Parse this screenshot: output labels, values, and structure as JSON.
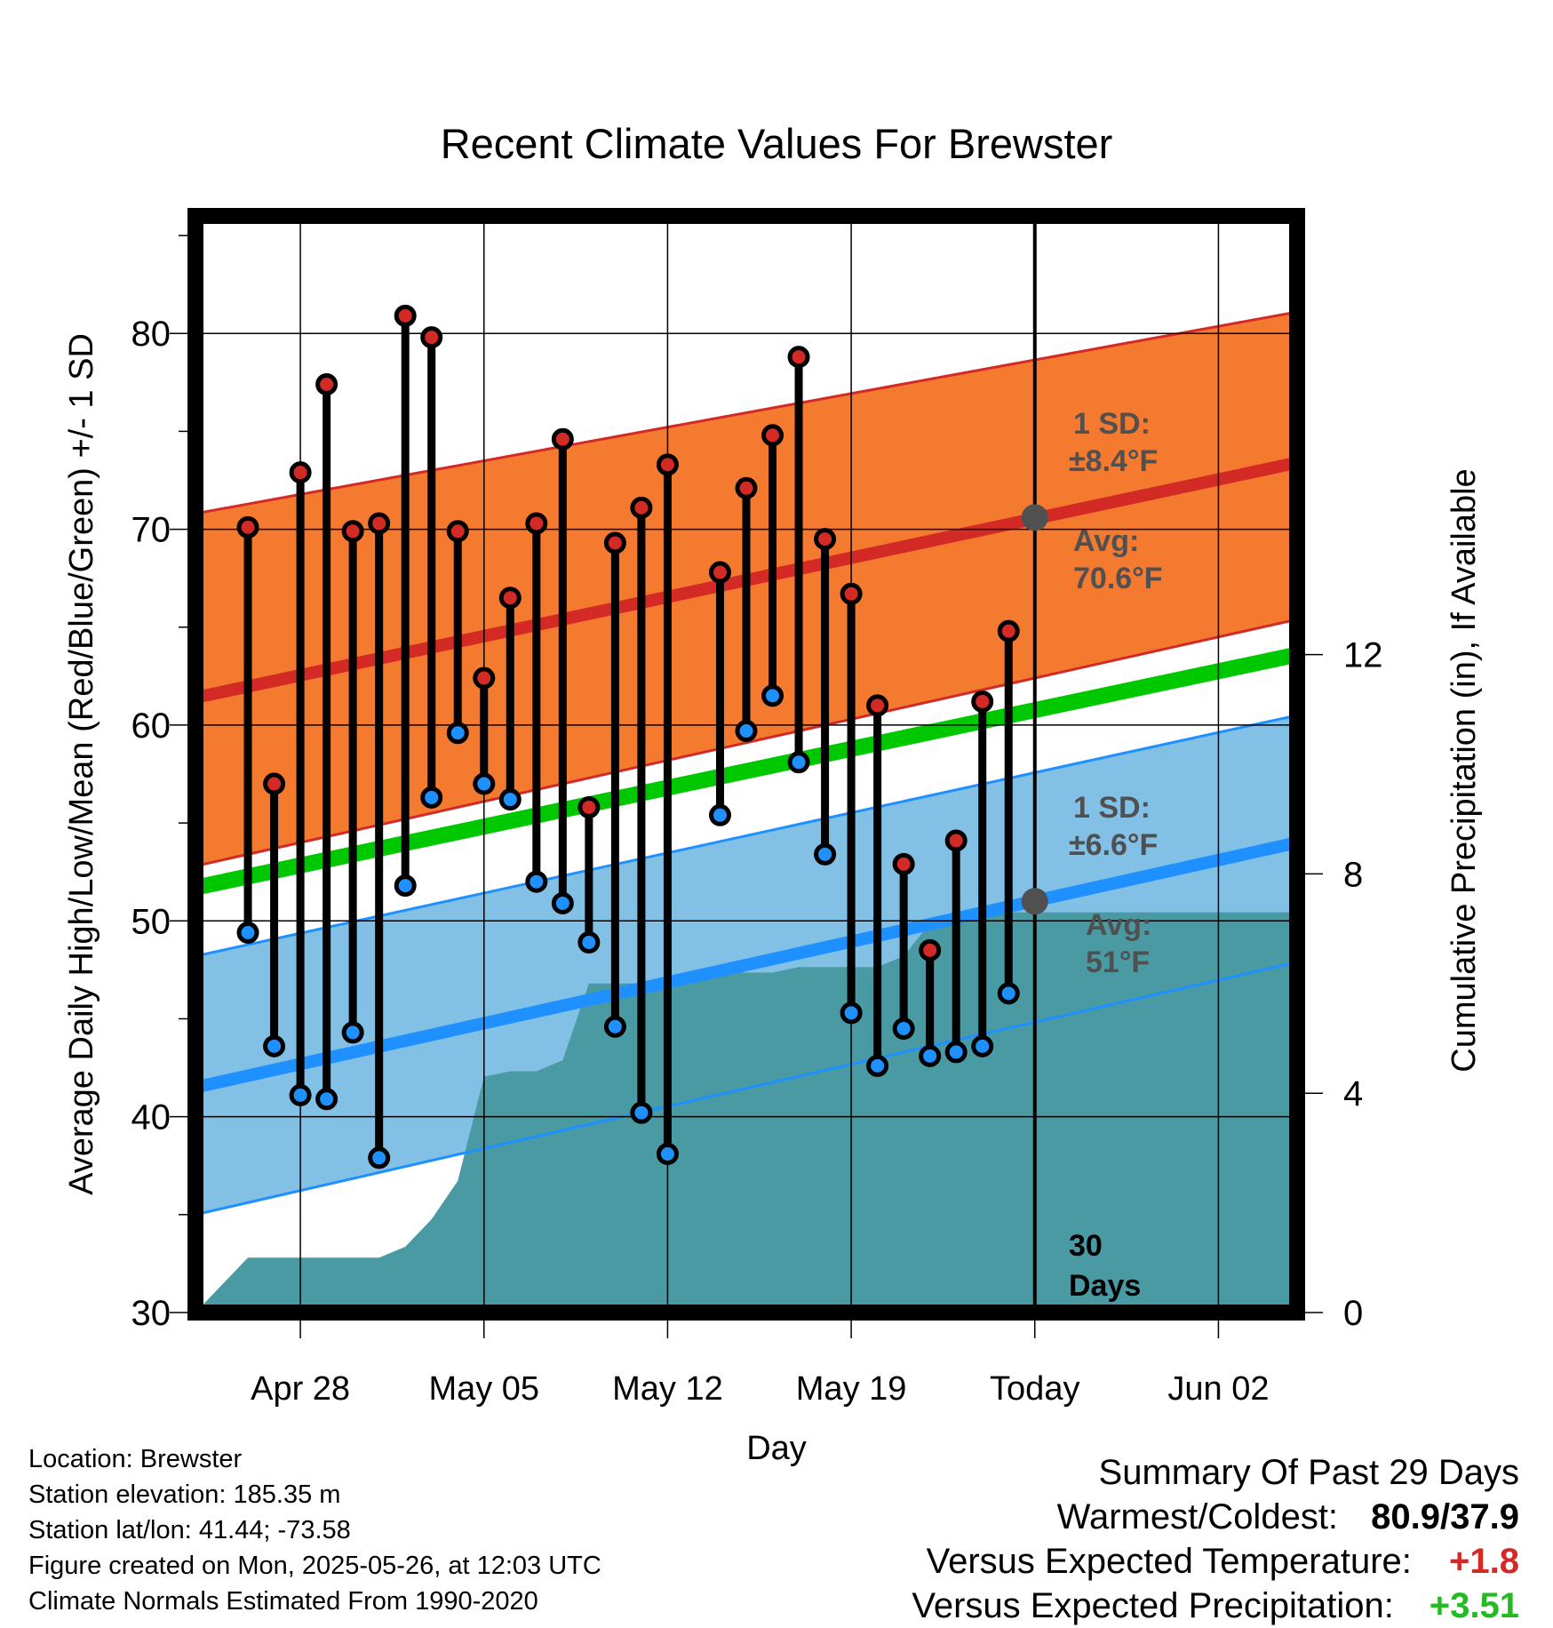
{
  "chart_data": {
    "type": "line",
    "title": "Recent Climate Values For Brewster",
    "xlabel": "Day",
    "ylabel": "Average Daily High/Low/Mean (Red/Blue/Green) +/- 1 SD",
    "y2label": "Cumulative Precipitation (in), If Available",
    "ylim": [
      30,
      86
    ],
    "y2lim": [
      0,
      20
    ],
    "y_ticks": [
      30,
      40,
      50,
      60,
      70,
      80
    ],
    "y2_ticks": [
      0,
      4,
      8,
      12
    ],
    "xlim": [
      "2025-04-24",
      "2025-06-05"
    ],
    "x_ticks": [
      {
        "date": "2025-04-28",
        "label": "Apr 28"
      },
      {
        "date": "2025-05-05",
        "label": "May 05"
      },
      {
        "date": "2025-05-12",
        "label": "May 12"
      },
      {
        "date": "2025-05-19",
        "label": "May 19"
      },
      {
        "date": "2025-05-26",
        "label": "Today"
      },
      {
        "date": "2025-06-02",
        "label": "Jun 02"
      }
    ],
    "today": "2025-05-26",
    "today_label_line1": "30",
    "today_label_line2": "Days",
    "grid": true,
    "normals": {
      "high_avg": {
        "start": 61.4,
        "end": 73.4
      },
      "high_sd_upper": {
        "start": 70.8,
        "end": 81.1
      },
      "high_sd_lower": {
        "start": 52.8,
        "end": 65.4
      },
      "mean_avg": {
        "start": 51.7,
        "end": 63.6
      },
      "low_avg": {
        "start": 41.5,
        "end": 54.0
      },
      "low_sd_upper": {
        "start": 48.2,
        "end": 60.5
      },
      "low_sd_lower": {
        "start": 35.0,
        "end": 47.9
      }
    },
    "high_annotation": {
      "sd_title": "1 SD:",
      "sd_value": "±8.4°F",
      "avg_title": "Avg:",
      "avg_value": "70.6°F",
      "marker_value": 70.6
    },
    "low_annotation": {
      "sd_title": "1 SD:",
      "sd_value": "±6.6°F",
      "avg_title": "Avg:",
      "avg_value": "51°F",
      "marker_value": 51.0
    },
    "daily": [
      {
        "date": "2025-04-26",
        "high": 70.1,
        "low": 49.4
      },
      {
        "date": "2025-04-27",
        "high": 57.0,
        "low": 43.6
      },
      {
        "date": "2025-04-28",
        "high": 72.9,
        "low": 41.1
      },
      {
        "date": "2025-04-29",
        "high": 77.4,
        "low": 40.9
      },
      {
        "date": "2025-04-30",
        "high": 69.9,
        "low": 44.3
      },
      {
        "date": "2025-05-01",
        "high": 70.3,
        "low": 37.9
      },
      {
        "date": "2025-05-02",
        "high": 80.9,
        "low": 51.8
      },
      {
        "date": "2025-05-03",
        "high": 79.8,
        "low": 56.3
      },
      {
        "date": "2025-05-04",
        "high": 69.9,
        "low": 59.6
      },
      {
        "date": "2025-05-05",
        "high": 62.4,
        "low": 57.0
      },
      {
        "date": "2025-05-06",
        "high": 66.5,
        "low": 56.2
      },
      {
        "date": "2025-05-07",
        "high": 70.3,
        "low": 52.0
      },
      {
        "date": "2025-05-08",
        "high": 74.6,
        "low": 50.9
      },
      {
        "date": "2025-05-09",
        "high": 55.8,
        "low": 48.9
      },
      {
        "date": "2025-05-10",
        "high": 69.3,
        "low": 44.6
      },
      {
        "date": "2025-05-11",
        "high": 71.1,
        "low": 40.2
      },
      {
        "date": "2025-05-12",
        "high": 73.3,
        "low": 38.1
      },
      {
        "date": "2025-05-14",
        "high": 67.8,
        "low": 55.4
      },
      {
        "date": "2025-05-15",
        "high": 72.1,
        "low": 59.7
      },
      {
        "date": "2025-05-16",
        "high": 74.8,
        "low": 61.5
      },
      {
        "date": "2025-05-17",
        "high": 78.8,
        "low": 58.1
      },
      {
        "date": "2025-05-18",
        "high": 69.5,
        "low": 53.4
      },
      {
        "date": "2025-05-19",
        "high": 66.7,
        "low": 45.3
      },
      {
        "date": "2025-05-20",
        "high": 61.0,
        "low": 42.6
      },
      {
        "date": "2025-05-21",
        "high": 52.9,
        "low": 44.5
      },
      {
        "date": "2025-05-22",
        "high": 48.5,
        "low": 43.1
      },
      {
        "date": "2025-05-23",
        "high": 54.1,
        "low": 43.3
      },
      {
        "date": "2025-05-24",
        "high": 61.2,
        "low": 43.6
      },
      {
        "date": "2025-05-25",
        "high": 64.8,
        "low": 46.3
      }
    ],
    "precipitation": [
      {
        "date": "2025-04-24",
        "value": 0.0
      },
      {
        "date": "2025-04-26",
        "value": 1.0
      },
      {
        "date": "2025-05-01",
        "value": 1.0
      },
      {
        "date": "2025-05-02",
        "value": 1.2
      },
      {
        "date": "2025-05-03",
        "value": 1.7
      },
      {
        "date": "2025-05-04",
        "value": 2.4
      },
      {
        "date": "2025-05-05",
        "value": 4.3
      },
      {
        "date": "2025-05-06",
        "value": 4.4
      },
      {
        "date": "2025-05-07",
        "value": 4.4
      },
      {
        "date": "2025-05-08",
        "value": 4.6
      },
      {
        "date": "2025-05-09",
        "value": 6.0
      },
      {
        "date": "2025-05-12",
        "value": 6.0
      },
      {
        "date": "2025-05-13",
        "value": 6.1
      },
      {
        "date": "2025-05-14",
        "value": 6.2
      },
      {
        "date": "2025-05-16",
        "value": 6.2
      },
      {
        "date": "2025-05-17",
        "value": 6.3
      },
      {
        "date": "2025-05-20",
        "value": 6.3
      },
      {
        "date": "2025-05-21",
        "value": 6.5
      },
      {
        "date": "2025-05-22",
        "value": 7.1
      },
      {
        "date": "2025-05-23",
        "value": 7.3
      },
      {
        "date": "2025-06-05",
        "value": 7.3
      }
    ],
    "colors": {
      "high_band": "#f47a30",
      "high_line": "#d32a26",
      "low_band": "#82c0e6",
      "low_line": "#1e90ff",
      "mean_line": "#00c800",
      "precip": "#4a9aa3",
      "high_dot": "#d32a26",
      "low_dot": "#1e90ff",
      "annotation": "#505050"
    }
  },
  "station": {
    "location": "Location: Brewster",
    "elevation": "Station elevation: 185.35 m",
    "latlon": "Station lat/lon: 41.44; -73.58",
    "created": "Figure created on Mon, 2025-05-26, at 12:03 UTC",
    "normals": "Climate Normals Estimated From 1990-2020"
  },
  "summary": {
    "title": "Summary Of Past 29 Days",
    "warmest_coldest_label": "Warmest/Coldest:",
    "warmest_coldest_value": "80.9/37.9",
    "temp_label": "Versus Expected Temperature:",
    "temp_value": "+1.8",
    "temp_color": "#d32a26",
    "precip_label": "Versus Expected Precipitation:",
    "precip_value": "+3.51",
    "precip_color": "#22bb22"
  }
}
